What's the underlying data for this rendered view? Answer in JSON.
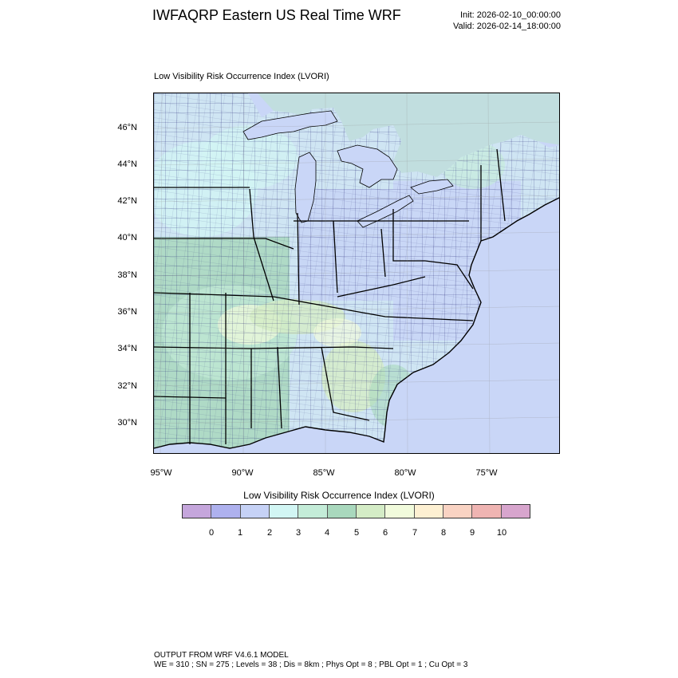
{
  "header": {
    "title": "IWFAQRP Eastern US Real Time WRF",
    "init": "Init: 2026-02-10_00:00:00",
    "valid": "Valid: 2026-02-14_18:00:00"
  },
  "map": {
    "title": "Low Visibility Risk Occurrence Index   (LVORI)",
    "lat_labels": [
      "46°N",
      "44°N",
      "42°N",
      "40°N",
      "38°N",
      "36°N",
      "34°N",
      "32°N",
      "30°N"
    ],
    "lon_labels": [
      "95°W",
      "90°W",
      "85°W",
      "80°W",
      "75°W"
    ],
    "colors": {
      "water": "#c9d6f7",
      "land_base": "#cfe5f3",
      "county_lines": "#1a1a6e",
      "state_lines": "#000000"
    }
  },
  "colorbar": {
    "title": "Low Visibility Risk Occurrence Index  (LVORI)",
    "labels": [
      "0",
      "1",
      "2",
      "3",
      "4",
      "5",
      "6",
      "7",
      "8",
      "9",
      "10"
    ],
    "colors": [
      "#c5a6dc",
      "#aeb1ee",
      "#c6d2f6",
      "#d2f6f4",
      "#c4ecd8",
      "#a9d8bd",
      "#d4ecc6",
      "#f1fbdc",
      "#fdf0d2",
      "#f9d3c3",
      "#efb4b2",
      "#d7a5cd"
    ]
  },
  "footer": {
    "line1": "OUTPUT FROM WRF V4.6.1 MODEL",
    "line2": "WE = 310 ; SN = 275 ; Levels = 38 ; Dis = 8km ; Phys Opt = 8 ; PBL Opt = 1 ; Cu Opt = 3"
  }
}
